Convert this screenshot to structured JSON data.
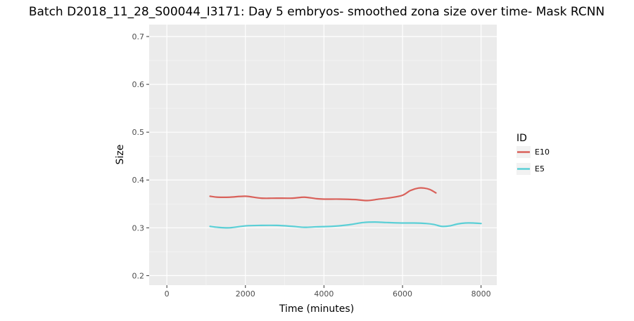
{
  "chart_data": {
    "type": "line",
    "title": "Batch D2018_11_28_S00044_I3171: Day 5 embryos- smoothed zona size over time- Mask RCNN",
    "xlabel": "Time (minutes)",
    "ylabel": "Size",
    "xlim": [
      -450,
      8400
    ],
    "ylim": [
      0.18,
      0.725
    ],
    "x_ticks": [
      0,
      2000,
      4000,
      6000,
      8000
    ],
    "x_tick_labels": [
      "0",
      "2000",
      "4000",
      "6000",
      "8000"
    ],
    "y_ticks": [
      0.2,
      0.3,
      0.4,
      0.5,
      0.6,
      0.7
    ],
    "y_tick_labels": [
      "0.2",
      "0.3",
      "0.4",
      "0.5",
      "0.6",
      "0.7"
    ],
    "grid": true,
    "legend": {
      "title": "ID",
      "position": "right"
    },
    "series": [
      {
        "name": "E10",
        "color": "#d9615a",
        "x": [
          1100,
          1300,
          1600,
          2000,
          2400,
          2800,
          3200,
          3500,
          3800,
          4000,
          4400,
          4800,
          5100,
          5400,
          5700,
          6000,
          6200,
          6400,
          6550,
          6700,
          6850
        ],
        "y": [
          0.366,
          0.364,
          0.364,
          0.366,
          0.362,
          0.362,
          0.362,
          0.364,
          0.361,
          0.36,
          0.36,
          0.359,
          0.357,
          0.36,
          0.363,
          0.368,
          0.378,
          0.383,
          0.383,
          0.38,
          0.373
        ]
      },
      {
        "name": "E5",
        "color": "#5bcfd6",
        "x": [
          1100,
          1300,
          1600,
          2000,
          2400,
          2800,
          3200,
          3500,
          3800,
          4200,
          4600,
          5000,
          5300,
          5600,
          6000,
          6300,
          6600,
          6800,
          7000,
          7200,
          7400,
          7600,
          7800,
          8000
        ],
        "y": [
          0.303,
          0.301,
          0.3,
          0.304,
          0.305,
          0.305,
          0.303,
          0.301,
          0.302,
          0.303,
          0.306,
          0.311,
          0.312,
          0.311,
          0.31,
          0.31,
          0.309,
          0.307,
          0.303,
          0.304,
          0.308,
          0.31,
          0.31,
          0.309
        ]
      }
    ]
  }
}
